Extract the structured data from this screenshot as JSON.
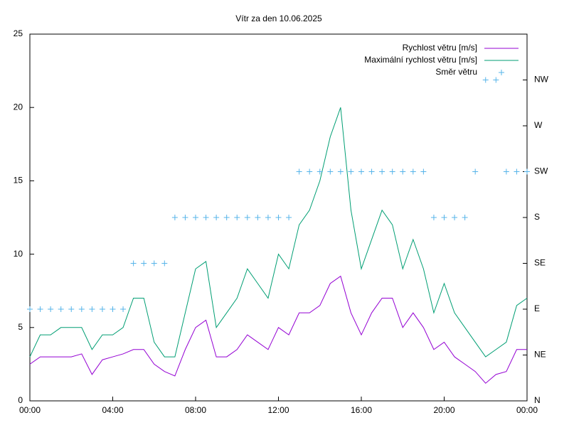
{
  "chart_data": {
    "type": "line",
    "title": "Vítr za den 10.06.2025",
    "x": [
      0,
      0.5,
      1,
      1.5,
      2,
      2.5,
      3,
      3.5,
      4,
      4.5,
      5,
      5.5,
      6,
      6.5,
      7,
      7.5,
      8,
      8.5,
      9,
      9.5,
      10,
      10.5,
      11,
      11.5,
      12,
      12.5,
      13,
      13.5,
      14,
      14.5,
      15,
      15.5,
      16,
      16.5,
      17,
      17.5,
      18,
      18.5,
      19,
      19.5,
      20,
      20.5,
      21,
      21.5,
      22,
      22.5,
      23,
      23.5,
      24
    ],
    "series": [
      {
        "name": "Rychlost větru [m/s]",
        "color": "#9400d3",
        "style": "line",
        "values": [
          2.5,
          3,
          3,
          3,
          3,
          3.2,
          1.8,
          2.8,
          3,
          3.2,
          3.5,
          3.5,
          2.5,
          2,
          1.7,
          3.5,
          5,
          5.5,
          3,
          3,
          3.5,
          4.5,
          4,
          3.5,
          5,
          4.5,
          6,
          6,
          6.5,
          8,
          8.5,
          6,
          4.5,
          6,
          7,
          7,
          5,
          6,
          5,
          3.5,
          4,
          3,
          2.5,
          2,
          1.2,
          1.8,
          2,
          3.5,
          3.5
        ]
      },
      {
        "name": "Maximální rychlost větru [m/s]",
        "color": "#009e73",
        "style": "line",
        "values": [
          3,
          4.5,
          4.5,
          5,
          5,
          5,
          3.5,
          4.5,
          4.5,
          5,
          7,
          7,
          4,
          3,
          3,
          6,
          9,
          9.5,
          5,
          6,
          7,
          9,
          8,
          7,
          10,
          9,
          12,
          13,
          15,
          18,
          20,
          13,
          9,
          11,
          13,
          12,
          9,
          11,
          9,
          6,
          8,
          6,
          5,
          4,
          3,
          3.5,
          4,
          6.5,
          7
        ]
      },
      {
        "name": "Směr větru",
        "color": "#56b4e9",
        "style": "points",
        "axis": "y2",
        "values": [
          90,
          90,
          90,
          90,
          90,
          90,
          90,
          90,
          90,
          90,
          135,
          135,
          135,
          135,
          180,
          180,
          180,
          180,
          180,
          180,
          180,
          180,
          180,
          180,
          180,
          180,
          225,
          225,
          225,
          225,
          225,
          225,
          225,
          225,
          225,
          225,
          225,
          225,
          225,
          180,
          180,
          180,
          180,
          225,
          315,
          315,
          225,
          225,
          225
        ]
      }
    ],
    "xlim": [
      0,
      24
    ],
    "xticks": [
      {
        "value": 0,
        "label": "00:00"
      },
      {
        "value": 4,
        "label": "04:00"
      },
      {
        "value": 8,
        "label": "08:00"
      },
      {
        "value": 12,
        "label": "12:00"
      },
      {
        "value": 16,
        "label": "16:00"
      },
      {
        "value": 20,
        "label": "20:00"
      },
      {
        "value": 24,
        "label": "00:00"
      }
    ],
    "ylim": [
      0,
      25
    ],
    "yticks": [
      0,
      5,
      10,
      15,
      20,
      25
    ],
    "y2lim": [
      0,
      360
    ],
    "y2ticks": [
      {
        "value": 0,
        "label": "N"
      },
      {
        "value": 45,
        "label": "NE"
      },
      {
        "value": 90,
        "label": "E"
      },
      {
        "value": 135,
        "label": "SE"
      },
      {
        "value": 180,
        "label": "S"
      },
      {
        "value": 225,
        "label": "SW"
      },
      {
        "value": 270,
        "label": "W"
      },
      {
        "value": 315,
        "label": "NW"
      }
    ],
    "legend": "top right",
    "grid": false
  }
}
